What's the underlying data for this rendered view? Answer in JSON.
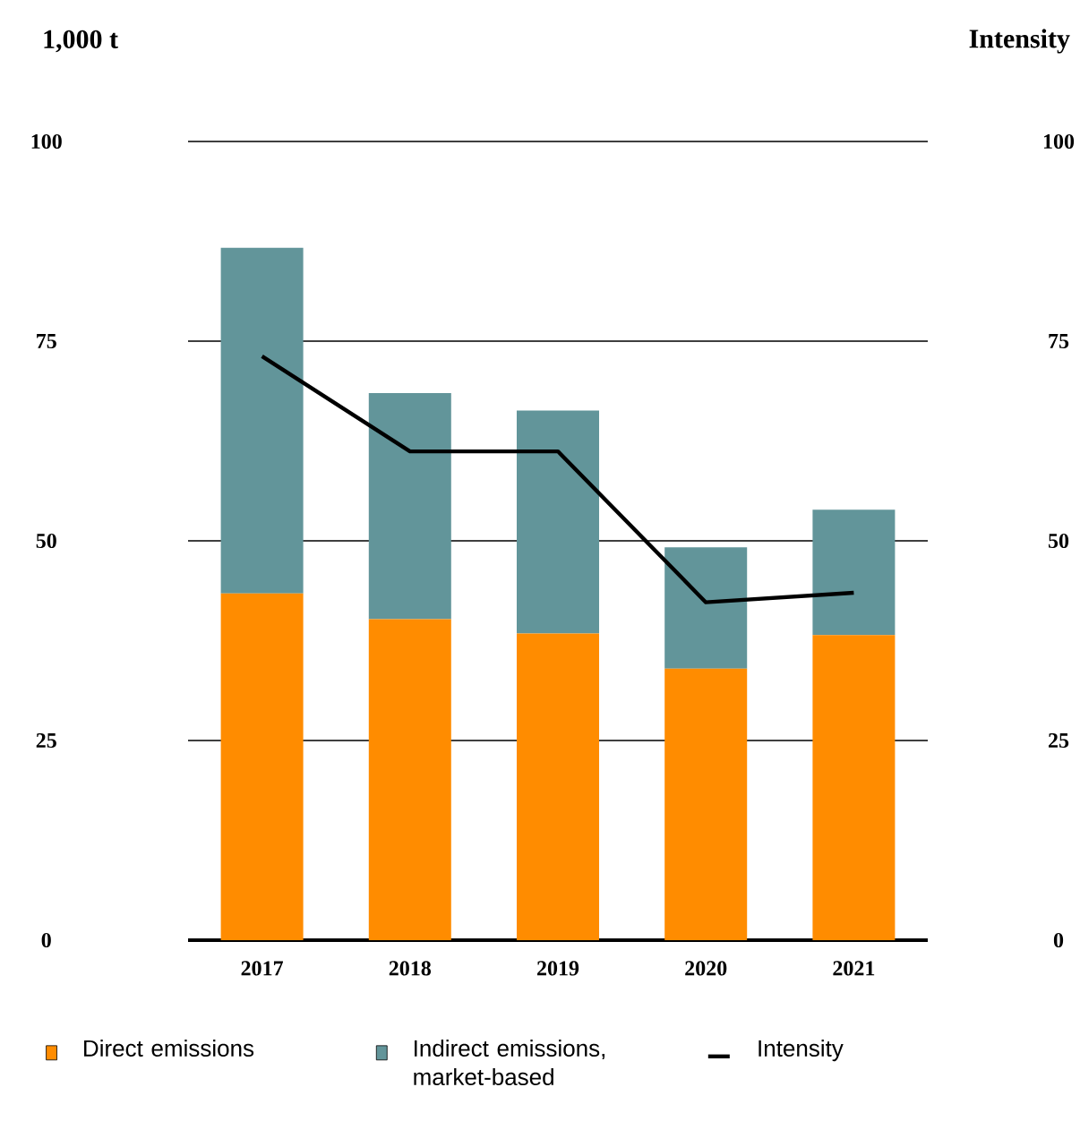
{
  "chart_data": {
    "type": "bar",
    "stacked": true,
    "ylabel": "1,000 t",
    "y2label": "Intensity",
    "categories": [
      "2017",
      "2018",
      "2019",
      "2020",
      "2021"
    ],
    "series": [
      {
        "name": "Direct emissions",
        "color": "#ff8c00",
        "values": [
          43.4,
          40.2,
          38.4,
          34.0,
          38.2
        ]
      },
      {
        "name": "Indirect emissions, market-based",
        "color": "#62959a",
        "values": [
          43.3,
          28.3,
          27.9,
          15.2,
          15.7
        ]
      },
      {
        "name": "Intensity",
        "type": "line",
        "axis": "y2",
        "color": "#000000",
        "values": [
          73.1,
          61.2,
          61.2,
          42.3,
          43.5
        ]
      }
    ],
    "ylim": [
      0,
      100
    ],
    "yticks": [
      0,
      25,
      50,
      75,
      100
    ],
    "y2lim": [
      0,
      100
    ],
    "y2ticks": [
      0,
      25,
      50,
      75,
      100
    ],
    "grid": "y",
    "legend": "bottom",
    "marker": "none",
    "line_style": "solid"
  }
}
